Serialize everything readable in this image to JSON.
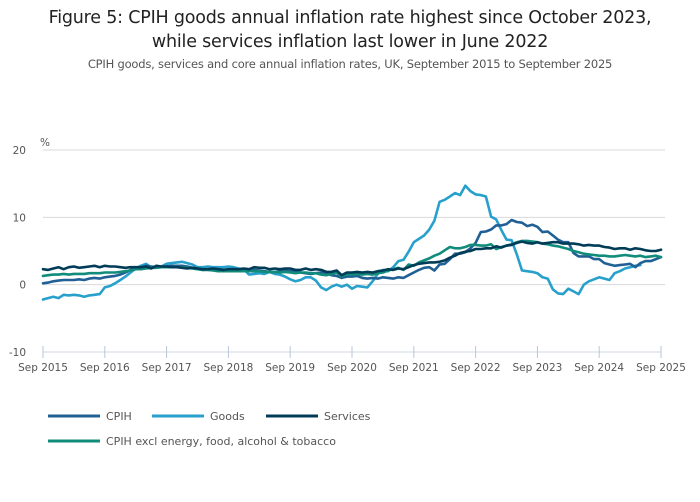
{
  "chart_data": {
    "type": "line",
    "title_line1": "Figure 5: CPIH goods annual inflation rate highest since October 2023,",
    "title_line2": "while services inflation last lower in June 2022",
    "subtitle": "CPIH goods, services and core annual inflation rates, UK, September 2015 to September 2025",
    "xlabel": "",
    "ylabel": "%",
    "ylim": [
      -10,
      20
    ],
    "yticks": [
      -10,
      0,
      10,
      20
    ],
    "xticks": [
      "Sep 2015",
      "Sep 2016",
      "Sep 2017",
      "Sep 2018",
      "Sep 2019",
      "Sep 2020",
      "Sep 2021",
      "Sep 2022",
      "Sep 2023",
      "Sep 2024",
      "Sep 2025"
    ],
    "x_start": "Sep 2015",
    "x_end": "Sep 2025",
    "frequency": "monthly",
    "grid": true,
    "legend_position": "bottom",
    "series": [
      {
        "name": "CPIH",
        "color": "#206095",
        "values": [
          0.2,
          0.3,
          0.5,
          0.6,
          0.7,
          0.7,
          0.7,
          0.8,
          0.7,
          0.9,
          1.0,
          0.9,
          1.1,
          1.2,
          1.3,
          1.5,
          1.8,
          2.2,
          2.4,
          2.5,
          2.8,
          2.7,
          2.6,
          2.6,
          2.7,
          2.8,
          2.8,
          2.8,
          2.7,
          2.5,
          2.4,
          2.2,
          2.3,
          2.2,
          2.3,
          2.2,
          2.2,
          2.2,
          2.1,
          2.2,
          2.2,
          2.2,
          2.1,
          2.0,
          1.9,
          1.9,
          2.0,
          2.1,
          2.0,
          1.9,
          1.8,
          1.7,
          1.6,
          1.7,
          1.8,
          1.7,
          1.4,
          1.3,
          1.0,
          1.2,
          1.2,
          1.3,
          1.0,
          0.9,
          1.0,
          0.9,
          1.1,
          1.0,
          0.9,
          1.1,
          1.0,
          1.4,
          1.8,
          2.2,
          2.5,
          2.6,
          2.1,
          3.0,
          3.1,
          3.8,
          4.6,
          4.6,
          4.8,
          5.4,
          6.2,
          7.8,
          7.9,
          8.2,
          8.8,
          8.8,
          9.0,
          9.6,
          9.3,
          9.2,
          8.7,
          8.9,
          8.6,
          7.8,
          7.9,
          7.3,
          6.7,
          6.3,
          6.3,
          4.7,
          4.2,
          4.2,
          4.2,
          3.8,
          3.8,
          3.2,
          3.0,
          2.8,
          2.9,
          3.0,
          3.1,
          2.6,
          3.2,
          3.5,
          3.5,
          3.8,
          4.1,
          3.7,
          3.7,
          4.0,
          4.1,
          4.1
        ],
        "values_tail": [
          4.1
        ]
      },
      {
        "name": "Goods",
        "color": "#27a0cc",
        "values": [
          -2.2,
          -2.0,
          -1.8,
          -2.0,
          -1.5,
          -1.6,
          -1.5,
          -1.6,
          -1.8,
          -1.6,
          -1.5,
          -1.4,
          -0.4,
          -0.2,
          0.2,
          0.7,
          1.2,
          1.8,
          2.4,
          2.8,
          3.1,
          2.6,
          2.6,
          2.7,
          3.1,
          3.2,
          3.3,
          3.4,
          3.2,
          3.0,
          2.6,
          2.6,
          2.7,
          2.6,
          2.6,
          2.6,
          2.7,
          2.6,
          2.4,
          2.3,
          1.5,
          1.6,
          1.7,
          1.6,
          1.9,
          1.6,
          1.5,
          1.2,
          0.8,
          0.5,
          0.7,
          1.1,
          1.1,
          0.6,
          -0.4,
          -0.8,
          -0.3,
          0.0,
          -0.3,
          0.0,
          -0.6,
          -0.2,
          -0.3,
          -0.4,
          0.5,
          1.6,
          2.2,
          2.0,
          2.6,
          3.5,
          3.7,
          4.9,
          6.3,
          6.8,
          7.3,
          8.2,
          9.5,
          12.3,
          12.6,
          13.1,
          13.6,
          13.3,
          14.7,
          13.9,
          13.4,
          13.3,
          13.1,
          10.1,
          9.7,
          8.1,
          6.7,
          6.6,
          4.5,
          2.1,
          2.0,
          1.9,
          1.7,
          1.1,
          0.9,
          -0.7,
          -1.3,
          -1.4,
          -0.6,
          -1.0,
          -1.4,
          0.0,
          0.5,
          0.8,
          1.1,
          0.9,
          0.7,
          1.7,
          2.0,
          2.4,
          2.6,
          2.8,
          2.9
        ],
        "values_tail": []
      },
      {
        "name": "Services",
        "color": "#003c57",
        "values": [
          2.3,
          2.2,
          2.4,
          2.6,
          2.3,
          2.6,
          2.7,
          2.5,
          2.6,
          2.7,
          2.8,
          2.6,
          2.8,
          2.7,
          2.7,
          2.6,
          2.5,
          2.6,
          2.6,
          2.6,
          2.7,
          2.4,
          2.8,
          2.7,
          2.7,
          2.6,
          2.6,
          2.5,
          2.4,
          2.5,
          2.4,
          2.3,
          2.3,
          2.4,
          2.3,
          2.2,
          2.3,
          2.3,
          2.3,
          2.4,
          2.3,
          2.6,
          2.5,
          2.5,
          2.3,
          2.4,
          2.3,
          2.4,
          2.4,
          2.2,
          2.2,
          2.4,
          2.2,
          2.3,
          2.2,
          1.9,
          1.9,
          2.1,
          1.4,
          1.8,
          1.8,
          1.9,
          1.8,
          1.9,
          1.8,
          2.0,
          2.1,
          2.3,
          2.2,
          2.4,
          2.3,
          2.6,
          2.9,
          3.1,
          3.2,
          3.3,
          3.3,
          3.4,
          3.6,
          4.0,
          4.3,
          4.7,
          4.9,
          5.0,
          5.3,
          5.3,
          5.4,
          5.4,
          5.7,
          5.5,
          5.8,
          5.9,
          6.2,
          6.4,
          6.2,
          6.1,
          6.3,
          6.1,
          6.2,
          6.3,
          6.3,
          6.1,
          6.1,
          6.1,
          6.0,
          5.8,
          5.9,
          5.8,
          5.8,
          5.6,
          5.5,
          5.3,
          5.4,
          5.4,
          5.2,
          5.4,
          5.3,
          5.1,
          5.0,
          5.0,
          5.2,
          5.1,
          5.0
        ],
        "values_tail": []
      },
      {
        "name": "CPIH excl energy, food, alcohol & tobacco",
        "color": "#118c7b",
        "values": [
          1.3,
          1.4,
          1.5,
          1.5,
          1.6,
          1.5,
          1.6,
          1.6,
          1.6,
          1.7,
          1.7,
          1.7,
          1.8,
          1.8,
          1.8,
          1.9,
          2.0,
          2.1,
          2.3,
          2.3,
          2.4,
          2.5,
          2.5,
          2.6,
          2.6,
          2.6,
          2.6,
          2.6,
          2.5,
          2.4,
          2.3,
          2.2,
          2.2,
          2.1,
          2.0,
          2.0,
          2.0,
          2.0,
          2.0,
          2.0,
          2.0,
          2.0,
          2.0,
          1.9,
          1.9,
          1.9,
          1.8,
          1.9,
          1.8,
          1.7,
          1.8,
          1.8,
          1.7,
          1.7,
          1.5,
          1.4,
          1.6,
          1.8,
          1.2,
          1.6,
          1.5,
          1.6,
          1.5,
          1.6,
          1.5,
          1.7,
          1.8,
          2.1,
          2.3,
          2.5,
          2.2,
          3.0,
          2.8,
          3.3,
          3.6,
          3.9,
          4.3,
          4.6,
          5.1,
          5.6,
          5.4,
          5.4,
          5.6,
          5.9,
          5.9,
          5.8,
          5.8,
          6.0,
          5.3,
          5.6,
          5.8,
          6.0,
          6.3,
          6.5,
          6.5,
          6.4,
          6.3,
          6.1,
          6.0,
          5.8,
          5.7,
          5.5,
          5.3,
          5.0,
          4.8,
          4.6,
          4.5,
          4.4,
          4.3,
          4.3,
          4.2,
          4.2,
          4.3,
          4.4,
          4.3,
          4.2,
          4.3,
          4.1,
          4.2,
          4.3,
          4.1,
          4.2,
          4.1
        ],
        "values_tail": []
      }
    ]
  }
}
